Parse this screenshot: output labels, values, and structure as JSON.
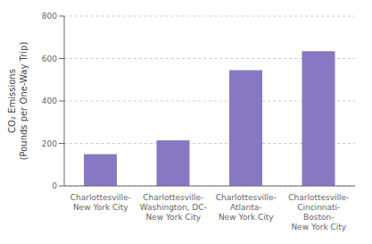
{
  "chart_data": {
    "type": "bar",
    "categories": [
      "Charlottesville-\nNew York City",
      "Charlottesville-\nWashington, DC-\nNew York City",
      "Charlottesville-\nAtlanta-\nNew York City",
      "Charlottesville-\nCincinnati-\nBoston-\nNew York City"
    ],
    "values": [
      150,
      215,
      545,
      635
    ],
    "color": "#8878c3",
    "ylabel": "CO₂ Emissions\n(Pounds per One-Way Trip)",
    "ylim": [
      0,
      800
    ],
    "yticks": [
      0,
      200,
      400,
      600,
      800
    ],
    "grid": true
  }
}
